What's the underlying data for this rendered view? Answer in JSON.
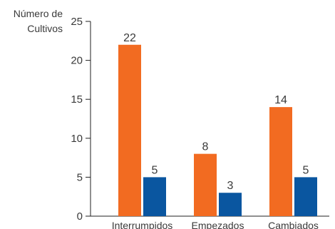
{
  "chart_data": {
    "type": "bar",
    "categories": [
      "Interrumpidos",
      "Empezados",
      "Cambiados"
    ],
    "series": [
      {
        "values": [
          22,
          8,
          14
        ],
        "color": "#f26b21"
      },
      {
        "values": [
          5,
          3,
          5
        ],
        "color": "#0a56a0"
      }
    ],
    "ylabel_lines": [
      "Número de",
      "Cultivos"
    ],
    "ylim": [
      0,
      25
    ],
    "yticks": [
      0,
      5,
      10,
      15,
      20,
      25
    ],
    "grid": false,
    "legend": "none",
    "axis_color": "#222222",
    "text_color": "#3a3a3a"
  }
}
